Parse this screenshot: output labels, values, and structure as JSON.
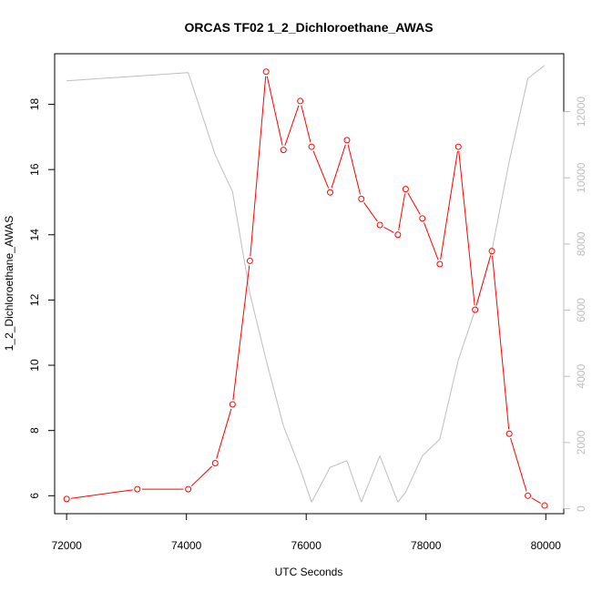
{
  "chart_data": {
    "type": "line",
    "title": "ORCAS TF02 1_2_Dichloroethane_AWAS",
    "xlabel": "UTC Seconds",
    "ylabel": "1_2_Dichloroethane_AWAS",
    "xlim": [
      71800,
      80300
    ],
    "ylim": [
      5.45,
      19.55
    ],
    "y2lim": [
      -150,
      13750
    ],
    "x_ticks": [
      72000,
      74000,
      76000,
      78000,
      80000
    ],
    "y_ticks": [
      6,
      8,
      10,
      12,
      14,
      16,
      18
    ],
    "y2_ticks": [
      0,
      2000,
      4000,
      6000,
      8000,
      10000,
      12000
    ],
    "grid": false,
    "series": [
      {
        "role": "primary",
        "color": "#ff0000",
        "marker": "open-circle",
        "x": [
          72000,
          73180,
          74030,
          74480,
          74770,
          75060,
          75330,
          75620,
          75900,
          76090,
          76400,
          76680,
          76920,
          77230,
          77530,
          77660,
          77940,
          78230,
          78540,
          78820,
          79100,
          79390,
          79700,
          79980
        ],
        "y": [
          5.9,
          6.2,
          6.2,
          7.0,
          8.8,
          13.2,
          19.0,
          16.6,
          18.1,
          16.7,
          15.3,
          16.9,
          15.1,
          14.3,
          14.0,
          15.4,
          14.5,
          13.1,
          16.7,
          11.7,
          13.5,
          7.9,
          6.0,
          5.7
        ]
      },
      {
        "role": "secondary",
        "color": "#bebebe",
        "marker": "none",
        "x": [
          72000,
          74030,
          74480,
          74770,
          75060,
          75330,
          75620,
          75900,
          76090,
          76400,
          76680,
          76920,
          77230,
          77530,
          77660,
          77940,
          78230,
          78540,
          78820,
          79100,
          79390,
          79700,
          79980
        ],
        "y": [
          12930,
          13180,
          10700,
          9580,
          6500,
          4500,
          2500,
          1200,
          200,
          1250,
          1450,
          200,
          1600,
          200,
          500,
          1600,
          2100,
          4500,
          6000,
          7800,
          10500,
          13000,
          13400
        ]
      }
    ]
  }
}
